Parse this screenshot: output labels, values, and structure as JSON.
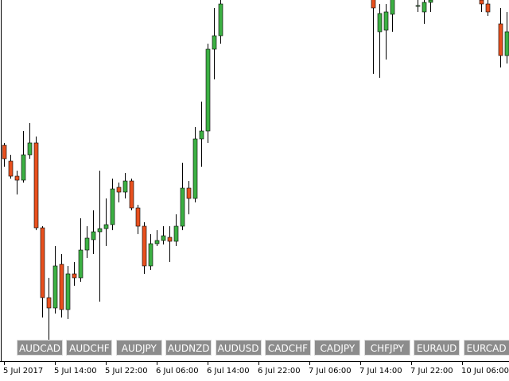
{
  "chart_data": {
    "type": "candlestick",
    "categories": [
      "5 Jul 2017",
      null,
      null,
      null,
      null,
      null,
      null,
      null,
      "5 Jul 14:00",
      null,
      null,
      null,
      null,
      null,
      null,
      null,
      "5 Jul 22:00",
      null,
      null,
      null,
      null,
      null,
      null,
      null,
      "6 Jul 06:00",
      null,
      null,
      null,
      null,
      null,
      null,
      null,
      "6 Jul 14:00",
      null,
      null,
      null,
      null,
      null,
      null,
      null,
      "6 Jul 22:00",
      null,
      null,
      null,
      null,
      null,
      null,
      null,
      "7 Jul 06:00",
      null,
      null,
      null,
      null,
      null,
      null,
      null,
      "7 Jul 14:00",
      null,
      null,
      null,
      null,
      null,
      null,
      null,
      "7 Jul 22:00",
      null,
      null,
      null,
      null,
      null,
      null,
      null,
      "10 Jul 06:00",
      null,
      null,
      null,
      null,
      null,
      null,
      null
    ],
    "open": [
      272,
      252,
      233,
      228,
      260,
      275,
      168,
      80,
      67,
      122,
      65,
      110,
      105,
      140,
      153,
      163,
      167,
      172,
      219,
      213,
      227,
      193,
      170,
      120,
      148,
      152,
      156,
      151,
      170,
      218,
      205,
      280,
      290,
      393,
      410,
      null,
      null,
      null,
      null,
      null,
      null,
      null,
      null,
      null,
      null,
      null,
      null,
      null,
      null,
      null,
      null,
      null,
      null,
      null,
      null,
      null,
      null,
      null,
      458,
      415,
      417,
      437,
      null,
      null,
      null,
      447,
      440,
      452,
      null,
      null,
      null,
      null,
      null,
      null,
      null,
      455,
      450,
      null,
      425,
      385
    ],
    "high": [
      275,
      260,
      240,
      290,
      300,
      283,
      170,
      105,
      145,
      135,
      120,
      125,
      180,
      170,
      190,
      240,
      205,
      230,
      225,
      237,
      230,
      197,
      175,
      160,
      165,
      170,
      170,
      185,
      250,
      227,
      295,
      327,
      400,
      445,
      470,
      null,
      null,
      null,
      null,
      null,
      null,
      null,
      null,
      null,
      null,
      null,
      null,
      null,
      null,
      null,
      null,
      null,
      null,
      null,
      null,
      null,
      null,
      null,
      470,
      450,
      450,
      470,
      null,
      null,
      null,
      455,
      465,
      462,
      null,
      null,
      null,
      null,
      null,
      null,
      null,
      462,
      458,
      null,
      445,
      440
    ],
    "low": [
      245,
      230,
      210,
      225,
      255,
      165,
      55,
      25,
      60,
      55,
      53,
      95,
      100,
      130,
      135,
      75,
      145,
      165,
      200,
      205,
      190,
      160,
      110,
      115,
      145,
      147,
      125,
      145,
      165,
      185,
      200,
      245,
      275,
      355,
      400,
      null,
      null,
      null,
      null,
      null,
      null,
      null,
      null,
      null,
      null,
      null,
      null,
      null,
      null,
      null,
      null,
      null,
      null,
      null,
      null,
      null,
      null,
      null,
      362,
      357,
      380,
      415,
      null,
      null,
      null,
      440,
      425,
      440,
      null,
      null,
      null,
      null,
      null,
      null,
      null,
      440,
      435,
      null,
      370,
      375
    ],
    "close": [
      255,
      233,
      228,
      260,
      275,
      168,
      80,
      67,
      120,
      65,
      110,
      105,
      140,
      155,
      163,
      167,
      172,
      217,
      213,
      227,
      193,
      170,
      120,
      148,
      152,
      158,
      151,
      170,
      218,
      205,
      280,
      290,
      393,
      410,
      450,
      null,
      null,
      null,
      null,
      null,
      null,
      null,
      null,
      null,
      null,
      null,
      null,
      null,
      null,
      null,
      null,
      null,
      null,
      null,
      null,
      null,
      null,
      null,
      445,
      438,
      440,
      458,
      null,
      null,
      null,
      448,
      452,
      455,
      null,
      null,
      null,
      null,
      null,
      null,
      null,
      450,
      440,
      null,
      385,
      415
    ],
    "ylim": [
      0,
      455
    ],
    "up_color": "#3cb043",
    "down_color": "#e8501e"
  },
  "buttons": [
    "AUDCAD",
    "AUDCHF",
    "AUDJPY",
    "AUDNZD",
    "AUDUSD",
    "CADCHF",
    "CADJPY",
    "CHFJPY",
    "EURAUD",
    "EURCAD"
  ]
}
